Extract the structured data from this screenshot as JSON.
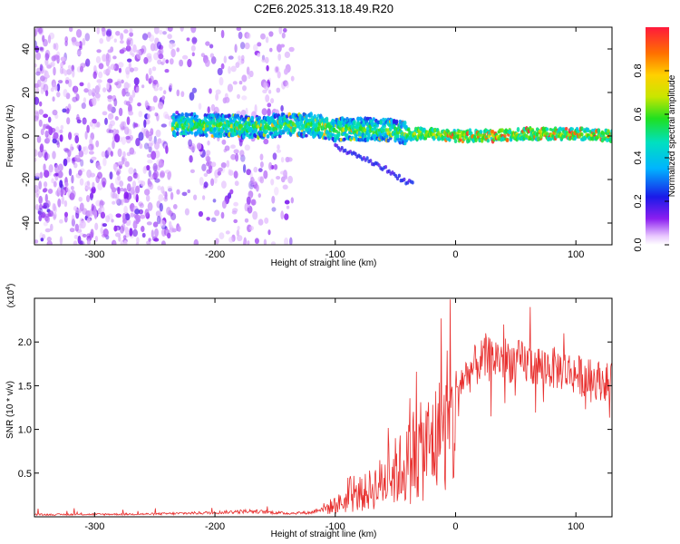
{
  "chart_data": [
    {
      "type": "heatmap",
      "title": "C2E6.2025.313.18.49.R20",
      "xlabel": "Height of straight line (km)",
      "ylabel": "Frequency (Hz)",
      "xlim": [
        -350,
        130
      ],
      "ylim": [
        -50,
        50
      ],
      "x_ticks": [
        -300,
        -200,
        -100,
        0,
        100
      ],
      "y_ticks": [
        -40,
        -20,
        0,
        20,
        40
      ],
      "colorbar": {
        "label": "Normalized spectral amplitude",
        "range": [
          0,
          1
        ],
        "ticks": [
          "0.0",
          "0.2",
          "0.4",
          "0.6",
          "0.8"
        ],
        "tick_values": [
          0.0,
          0.2,
          0.4,
          0.6,
          0.8
        ]
      },
      "features": [
        {
          "name": "noise",
          "x_range": [
            -350,
            -135
          ],
          "description": "scattered low-amplitude speckle"
        },
        {
          "name": "signal-band",
          "x_range": [
            -235,
            130
          ],
          "freq_center": 2,
          "description": "narrow high-amplitude band near 0 Hz"
        },
        {
          "name": "descending-branch",
          "x_range": [
            -100,
            -35
          ],
          "freq_range": [
            -22,
            -5
          ]
        }
      ],
      "band_path": [
        [
          -235,
          5
        ],
        [
          -200,
          5
        ],
        [
          -170,
          4
        ],
        [
          -140,
          5
        ],
        [
          -120,
          5
        ],
        [
          -100,
          3
        ],
        [
          -80,
          3
        ],
        [
          -60,
          3
        ],
        [
          -40,
          1
        ],
        [
          -20,
          1
        ],
        [
          0,
          0
        ],
        [
          30,
          0
        ],
        [
          60,
          1
        ],
        [
          100,
          1
        ],
        [
          130,
          0
        ]
      ],
      "branch_path": [
        [
          -100,
          -5
        ],
        [
          -85,
          -8
        ],
        [
          -70,
          -12
        ],
        [
          -55,
          -16
        ],
        [
          -42,
          -21
        ]
      ]
    },
    {
      "type": "line",
      "xlabel": "Height of straight line (km)",
      "ylabel": "SNR (10 * v/v)",
      "y_multiplier": "(x10",
      "y_multiplier_exp": "4",
      "y_multiplier_close": ")",
      "xlim": [
        -350,
        130
      ],
      "ylim": [
        0,
        25000
      ],
      "x_ticks": [
        -300,
        -200,
        -100,
        0,
        100
      ],
      "y_ticks": [
        0.5,
        1.0,
        1.5,
        2.0
      ],
      "y_tick_labels": [
        "0.5",
        "1.0",
        "1.5",
        "2.0"
      ],
      "series_color": "#e8302f",
      "envelope": [
        [
          -350,
          300
        ],
        [
          -250,
          400
        ],
        [
          -200,
          600
        ],
        [
          -170,
          800
        ],
        [
          -140,
          500
        ],
        [
          -120,
          600
        ],
        [
          -100,
          2000
        ],
        [
          -80,
          3500
        ],
        [
          -60,
          6000
        ],
        [
          -40,
          9000
        ],
        [
          -20,
          12500
        ],
        [
          -10,
          14000
        ],
        [
          0,
          15500
        ],
        [
          10,
          17000
        ],
        [
          20,
          18500
        ],
        [
          35,
          19000
        ],
        [
          50,
          18500
        ],
        [
          70,
          18000
        ],
        [
          90,
          17500
        ],
        [
          110,
          16500
        ],
        [
          130,
          16000
        ]
      ],
      "spikes": [
        [
          -12,
          22700
        ],
        [
          62,
          24000
        ],
        [
          40,
          22000
        ],
        [
          25,
          21000
        ],
        [
          -35,
          12000
        ],
        [
          -50,
          9000
        ],
        [
          90,
          21000
        ]
      ]
    }
  ]
}
